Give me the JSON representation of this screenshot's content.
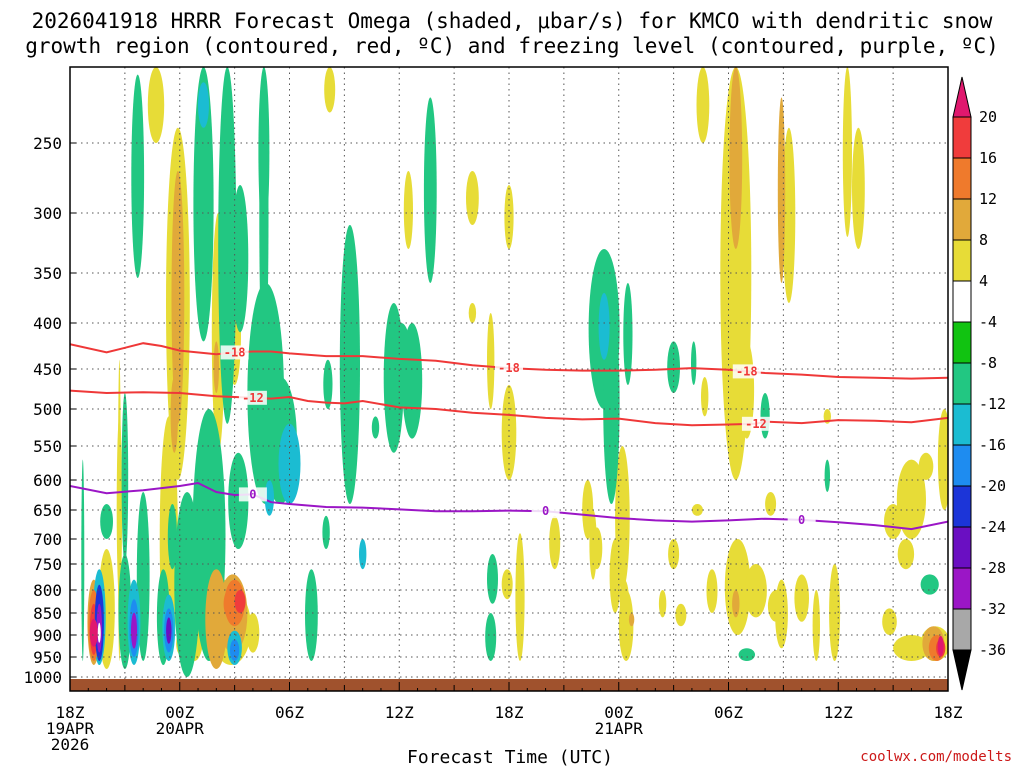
{
  "title": {
    "line1": "2026041918 HRRR Forecast Omega (shaded, μbar/s) for KMCO with dendritic snow",
    "line2": "growth region (contoured, red, ºC) and freezing level (contoured, purple, ºC)"
  },
  "credit": "coolwx.com/modelts",
  "chart_data": {
    "type": "time-height cross-section (filled contour)",
    "title": "2026041918 HRRR Forecast Omega (shaded, μbar/s) for KMCO with dendritic snow growth region (contoured, red, ºC) and freezing level (contoured, purple, ºC)",
    "xlabel": "Forecast Time (UTC)",
    "x_ticks": [
      {
        "hour": 0,
        "lines": [
          "18Z",
          "19APR",
          "2026"
        ]
      },
      {
        "hour": 6,
        "lines": [
          "00Z",
          "20APR"
        ]
      },
      {
        "hour": 12,
        "lines": [
          "06Z"
        ]
      },
      {
        "hour": 18,
        "lines": [
          "12Z"
        ]
      },
      {
        "hour": 24,
        "lines": [
          "18Z"
        ]
      },
      {
        "hour": 30,
        "lines": [
          "00Z",
          "21APR"
        ]
      },
      {
        "hour": 36,
        "lines": [
          "06Z"
        ]
      },
      {
        "hour": 42,
        "lines": [
          "12Z"
        ]
      },
      {
        "hour": 48,
        "lines": [
          "18Z"
        ]
      }
    ],
    "xlim": [
      0,
      48
    ],
    "y_ticks": [
      250,
      300,
      350,
      400,
      450,
      500,
      550,
      600,
      650,
      700,
      750,
      800,
      850,
      900,
      950,
      1000
    ],
    "ylim": [
      200,
      1000
    ],
    "grid": true,
    "colorbar": {
      "label_values": [
        20,
        16,
        12,
        8,
        4,
        -4,
        -8,
        -12,
        -16,
        -20,
        -24,
        -28,
        -32,
        -36
      ],
      "levels": [
        {
          "range": [
            16,
            20
          ],
          "color": "#f03c3c"
        },
        {
          "range": [
            12,
            16
          ],
          "color": "#ef7a2c"
        },
        {
          "range": [
            8,
            12
          ],
          "color": "#e1a93a"
        },
        {
          "range": [
            4,
            8
          ],
          "color": "#e7dc37"
        },
        {
          "range": [
            -4,
            4
          ],
          "color": "#ffffff"
        },
        {
          "range": [
            -8,
            -4
          ],
          "color": "#11c311"
        },
        {
          "range": [
            -12,
            -8
          ],
          "color": "#22c782"
        },
        {
          "range": [
            -16,
            -12
          ],
          "color": "#1bbcd2"
        },
        {
          "range": [
            -20,
            -16
          ],
          "color": "#1e8cf0"
        },
        {
          "range": [
            -24,
            -20
          ],
          "color": "#1c35d8"
        },
        {
          "range": [
            -28,
            -24
          ],
          "color": "#6a0fc2"
        },
        {
          "range": [
            -32,
            -28
          ],
          "color": "#9b16c6"
        },
        {
          "range": [
            -36,
            -32
          ],
          "color": "#a8a8a8"
        }
      ],
      "top_triangle_color": "#e0186e",
      "bottom_triangle_color": "#000000"
    },
    "contours": [
      {
        "name": "-18",
        "color": "#ef3838",
        "label": "-18",
        "label_hours": [
          9,
          24,
          37
        ],
        "points": [
          [
            0,
            423
          ],
          [
            2,
            432
          ],
          [
            3,
            427
          ],
          [
            4,
            422
          ],
          [
            5,
            425
          ],
          [
            6,
            430
          ],
          [
            8,
            434
          ],
          [
            9,
            432
          ],
          [
            10,
            431
          ],
          [
            11,
            431
          ],
          [
            12,
            433
          ],
          [
            14,
            436
          ],
          [
            16,
            436
          ],
          [
            18,
            439
          ],
          [
            20,
            441
          ],
          [
            22,
            446
          ],
          [
            24,
            449
          ],
          [
            26,
            451
          ],
          [
            28,
            452
          ],
          [
            30,
            452
          ],
          [
            32,
            451
          ],
          [
            34,
            449
          ],
          [
            36,
            451
          ],
          [
            38,
            455
          ],
          [
            40,
            457
          ],
          [
            42,
            460
          ],
          [
            44,
            461
          ],
          [
            46,
            462
          ],
          [
            48,
            461
          ]
        ]
      },
      {
        "name": "-12",
        "color": "#ef3838",
        "label": "-12",
        "label_hours": [
          10,
          37.5
        ],
        "points": [
          [
            0,
            477
          ],
          [
            2,
            480
          ],
          [
            4,
            479
          ],
          [
            6,
            480
          ],
          [
            8,
            484
          ],
          [
            10,
            486
          ],
          [
            11,
            487
          ],
          [
            12,
            485
          ],
          [
            13,
            490
          ],
          [
            14,
            492
          ],
          [
            15,
            493
          ],
          [
            16,
            490
          ],
          [
            18,
            498
          ],
          [
            20,
            500
          ],
          [
            22,
            505
          ],
          [
            24,
            508
          ],
          [
            26,
            512
          ],
          [
            28,
            514
          ],
          [
            30,
            513
          ],
          [
            32,
            519
          ],
          [
            34,
            522
          ],
          [
            36,
            521
          ],
          [
            37.5,
            520
          ],
          [
            38,
            517
          ],
          [
            40,
            519
          ],
          [
            42,
            515
          ],
          [
            44,
            516
          ],
          [
            46,
            518
          ],
          [
            48,
            512
          ]
        ]
      },
      {
        "name": "0",
        "color": "#9b16c6",
        "label": "0",
        "label_hours": [
          10,
          26,
          40
        ],
        "points": [
          [
            0,
            610
          ],
          [
            2,
            622
          ],
          [
            4,
            617
          ],
          [
            6,
            610
          ],
          [
            7,
            605
          ],
          [
            8,
            620
          ],
          [
            9,
            625
          ],
          [
            10,
            624
          ],
          [
            11,
            637
          ],
          [
            12,
            640
          ],
          [
            14,
            645
          ],
          [
            16,
            646
          ],
          [
            18,
            649
          ],
          [
            20,
            652
          ],
          [
            22,
            652
          ],
          [
            24,
            651
          ],
          [
            26,
            652
          ],
          [
            28,
            658
          ],
          [
            30,
            664
          ],
          [
            32,
            668
          ],
          [
            34,
            670
          ],
          [
            36,
            668
          ],
          [
            38,
            665
          ],
          [
            40,
            667
          ],
          [
            42,
            671
          ],
          [
            44,
            676
          ],
          [
            46,
            683
          ],
          [
            48,
            670
          ]
        ]
      }
    ],
    "omega_cores": [
      {
        "hour": 1.6,
        "p": 905,
        "value": -28
      },
      {
        "hour": 3.5,
        "p": 895,
        "value": -28
      },
      {
        "hour": 5.4,
        "p": 890,
        "value": -24
      },
      {
        "hour": 9.0,
        "p": 940,
        "value": -16
      },
      {
        "hour": 1.3,
        "p": 900,
        "value": 16
      },
      {
        "hour": 9.3,
        "p": 825,
        "value": 16
      },
      {
        "hour": 47.5,
        "p": 925,
        "value": 16
      },
      {
        "hour": 29.2,
        "p": 405,
        "value": -12
      },
      {
        "hour": 12.0,
        "p": 580,
        "value": -12
      }
    ]
  }
}
